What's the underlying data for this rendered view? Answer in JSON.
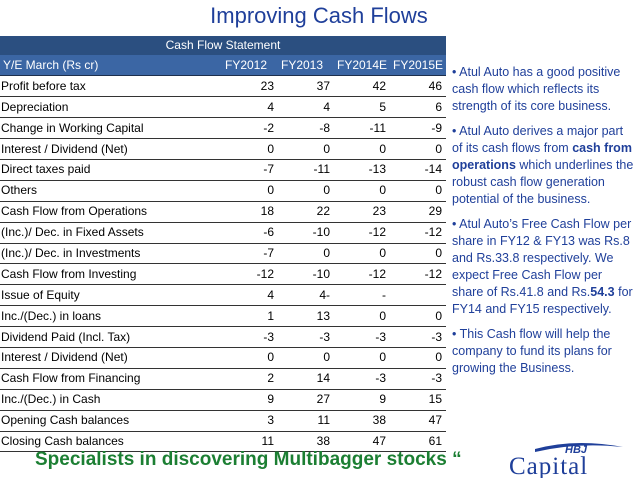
{
  "title": "Improving Cash Flows",
  "table": {
    "caption": "Cash Flow Statement",
    "headers": [
      "Y/E March (Rs cr)",
      "FY2012",
      "FY2013",
      "FY2014E",
      "FY2015E"
    ],
    "rows": [
      {
        "label": "Profit before tax",
        "values": [
          "23",
          "37",
          "42",
          "46"
        ]
      },
      {
        "label": "Depreciation",
        "values": [
          "4",
          "4",
          "5",
          "6"
        ]
      },
      {
        "label": "Change in Working Capital",
        "values": [
          "-2",
          "-8",
          "-11",
          "-9"
        ]
      },
      {
        "label": "Interest / Dividend (Net)",
        "values": [
          "0",
          "0",
          "0",
          "0"
        ]
      },
      {
        "label": "Direct taxes paid",
        "values": [
          "-7",
          "-11",
          "-13",
          "-14"
        ]
      },
      {
        "label": "Others",
        "values": [
          "0",
          "0",
          "0",
          "0"
        ]
      },
      {
        "label": "Cash Flow from Operations",
        "values": [
          "18",
          "22",
          "23",
          "29"
        ]
      },
      {
        "label": "(Inc.)/ Dec. in Fixed Assets",
        "values": [
          "-6",
          "-10",
          "-12",
          "-12"
        ]
      },
      {
        "label": "(Inc.)/ Dec. in Investments",
        "values": [
          "-7",
          "0",
          "0",
          "0"
        ]
      },
      {
        "label": "Cash Flow from Investing",
        "values": [
          "-12",
          "-10",
          "-12",
          "-12"
        ]
      },
      {
        "label": "Issue of Equity",
        "values": [
          "4",
          "4-",
          "-",
          ""
        ]
      },
      {
        "label": "Inc./(Dec.) in loans",
        "values": [
          "1",
          "13",
          "0",
          "0"
        ]
      },
      {
        "label": "Dividend Paid (Incl. Tax)",
        "values": [
          "-3",
          "-3",
          "-3",
          "-3"
        ]
      },
      {
        "label": "Interest / Dividend (Net)",
        "values": [
          "0",
          "0",
          "0",
          "0"
        ]
      },
      {
        "label": "Cash Flow from Financing",
        "values": [
          "2",
          "14",
          "-3",
          "-3"
        ]
      },
      {
        "label": "Inc./(Dec.) in Cash",
        "values": [
          "9",
          "27",
          "9",
          "15"
        ]
      },
      {
        "label": "Opening Cash balances",
        "values": [
          "3",
          "11",
          "38",
          "47"
        ]
      },
      {
        "label": "Closing Cash balances",
        "values": [
          "11",
          "38",
          "47",
          "61"
        ]
      }
    ]
  },
  "bullets": [
    {
      "parts": [
        {
          "text": "• Atul Auto has a good positive cash flow which reflects its strength of its core business."
        }
      ]
    },
    {
      "parts": [
        {
          "text": "• Atul Auto derives a major part of its cash flows from "
        },
        {
          "text": "cash from operations",
          "bold": true
        },
        {
          "text": " which underlines the robust cash flow generation potential of the business."
        }
      ]
    },
    {
      "parts": [
        {
          "text": "• Atul Auto’s Free Cash Flow per share in FY12 & FY13 was Rs.8 and Rs.33.8 respectively. We expect Free Cash Flow per share of Rs.41.8 and Rs."
        },
        {
          "text": "54.3",
          "bold": true
        },
        {
          "text": " for FY14 and FY15 respectively."
        }
      ]
    },
    {
      "parts": [
        {
          "text": "• This Cash flow will help the company to fund its plans for growing the Business."
        }
      ]
    }
  ],
  "tagline": "Specialists in discovering Multibagger stocks “",
  "logo": {
    "line1": "HBJ",
    "line2": "Capital"
  },
  "colors": {
    "title": "#1f3f9a",
    "header": "#3b66a4",
    "caption": "#2b4f80",
    "tagline": "#1c7f33"
  }
}
